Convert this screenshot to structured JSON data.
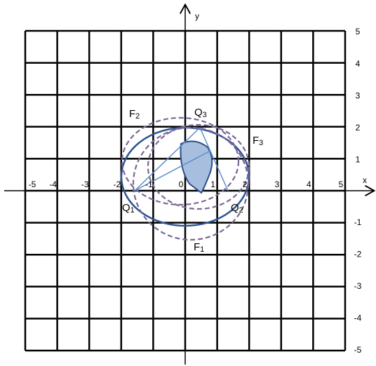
{
  "axes": {
    "x_label": "x",
    "y_label": "y",
    "x_ticks": [
      "-5",
      "-4",
      "-3",
      "-2",
      "-1",
      "0",
      "1",
      "2",
      "3",
      "4",
      "5"
    ],
    "y_ticks": [
      "5",
      "4",
      "3",
      "2",
      "1",
      "-1",
      "-2",
      "-3",
      "-4",
      "-5"
    ]
  },
  "labels": [
    {
      "letter": "F",
      "sub": "2"
    },
    {
      "letter": "Q",
      "sub": "3"
    },
    {
      "letter": "F",
      "sub": "3"
    },
    {
      "letter": "Q",
      "sub": "1"
    },
    {
      "letter": "Q",
      "sub": "2"
    },
    {
      "letter": "F",
      "sub": "1"
    }
  ]
}
